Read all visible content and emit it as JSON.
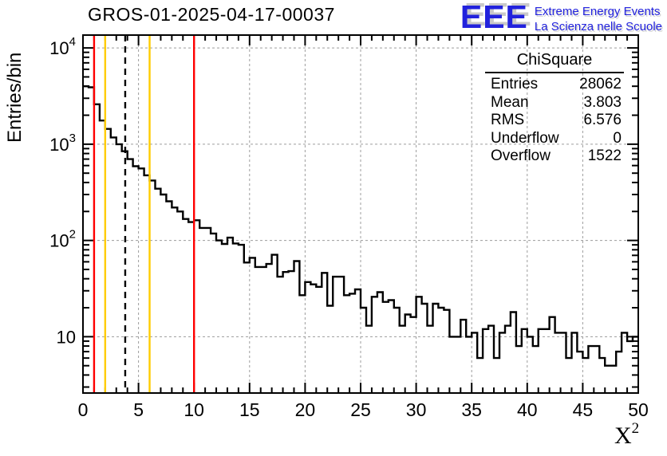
{
  "title": "GROS-01-2025-04-17-00037",
  "logo": {
    "acronym": "EEE",
    "line1": "Extreme Energy Events",
    "line2": "La Scienza nelle Scuole",
    "color": "#2222dd",
    "shadow": "#c9c9c9"
  },
  "stats": {
    "title": "ChiSquare",
    "rows": [
      {
        "label": "Entries",
        "value": "28062"
      },
      {
        "label": "Mean",
        "value": "3.803"
      },
      {
        "label": "RMS",
        "value": "6.576"
      },
      {
        "label": "Underflow",
        "value": "0"
      },
      {
        "label": "Overflow",
        "value": "1522"
      }
    ]
  },
  "axes": {
    "y_label": "Entries/bin",
    "x_label_base": "X",
    "x_label_exp": "2"
  },
  "chart_data": {
    "type": "bar",
    "style": "step-histogram",
    "title": "GROS-01-2025-04-17-00037",
    "xlabel": "X^2 (chi-square)",
    "ylabel": "Entries/bin",
    "x_range": [
      0,
      50
    ],
    "y_range": [
      2.6,
      13600
    ],
    "y_scale": "log",
    "grid": true,
    "grid_x": [
      5,
      10,
      15,
      20,
      25,
      30,
      35,
      40,
      45
    ],
    "x_ticks": [
      0,
      5,
      10,
      15,
      20,
      25,
      30,
      35,
      40,
      45,
      50
    ],
    "y_decades": [
      1,
      2,
      3,
      4
    ],
    "bin_start": 0,
    "bin_width": 0.5,
    "values": [
      4000,
      3900,
      2600,
      1760,
      1440,
      1175,
      1000,
      845,
      700,
      590,
      560,
      475,
      420,
      345,
      300,
      255,
      220,
      200,
      167,
      155,
      162,
      135,
      135,
      118,
      100,
      92,
      107,
      93,
      90,
      59,
      66,
      53,
      53,
      57,
      71,
      42,
      47,
      48,
      61,
      27,
      37,
      35,
      33,
      46,
      21,
      42,
      42,
      27,
      28,
      31,
      20,
      13,
      26,
      29,
      23,
      24,
      20,
      13,
      17,
      16,
      26,
      22,
      13,
      22,
      20,
      19,
      10,
      10,
      15,
      10,
      11,
      6,
      12,
      13,
      6,
      11,
      13,
      18,
      8,
      12,
      10,
      8,
      12,
      12,
      16,
      11,
      11,
      6,
      11,
      7,
      6,
      8,
      8,
      6,
      5,
      5,
      7,
      11,
      9,
      10
    ],
    "marker_lines": [
      {
        "x": 1,
        "color": "#ff0000",
        "dash": "",
        "name": "red-cut-low"
      },
      {
        "x": 2,
        "color": "#ffcc00",
        "dash": "",
        "name": "yellow-cut-low"
      },
      {
        "x": 3.803,
        "color": "#000000",
        "dash": "8,6",
        "name": "mean-dashed-line"
      },
      {
        "x": 6,
        "color": "#ffcc00",
        "dash": "",
        "name": "yellow-cut-high"
      },
      {
        "x": 10,
        "color": "#ff0000",
        "dash": "",
        "name": "red-cut-high"
      }
    ],
    "colors": {
      "histogram": "#000000",
      "grid": "#9c9c9c",
      "frame": "#000000"
    }
  }
}
